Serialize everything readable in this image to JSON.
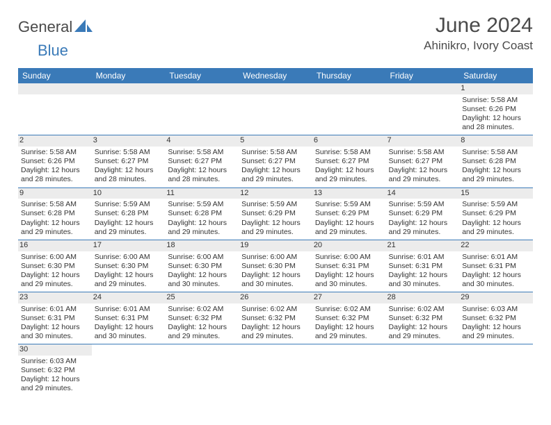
{
  "brand": {
    "part1": "General",
    "part2": "Blue"
  },
  "title": "June 2024",
  "location": "Ahinikro, Ivory Coast",
  "colors": {
    "header_bg": "#3a7ab8",
    "header_text": "#ffffff",
    "daynum_bg": "#ececec",
    "divider": "#3a7ab8",
    "text": "#333333",
    "logo_gray": "#4a4a4a",
    "logo_blue": "#3a7ab8"
  },
  "weekdays": [
    "Sunday",
    "Monday",
    "Tuesday",
    "Wednesday",
    "Thursday",
    "Friday",
    "Saturday"
  ],
  "weeks": [
    [
      null,
      null,
      null,
      null,
      null,
      null,
      {
        "n": "1",
        "sr": "5:58 AM",
        "ss": "6:26 PM",
        "dl": "12 hours and 28 minutes."
      }
    ],
    [
      {
        "n": "2",
        "sr": "5:58 AM",
        "ss": "6:26 PM",
        "dl": "12 hours and 28 minutes."
      },
      {
        "n": "3",
        "sr": "5:58 AM",
        "ss": "6:27 PM",
        "dl": "12 hours and 28 minutes."
      },
      {
        "n": "4",
        "sr": "5:58 AM",
        "ss": "6:27 PM",
        "dl": "12 hours and 28 minutes."
      },
      {
        "n": "5",
        "sr": "5:58 AM",
        "ss": "6:27 PM",
        "dl": "12 hours and 29 minutes."
      },
      {
        "n": "6",
        "sr": "5:58 AM",
        "ss": "6:27 PM",
        "dl": "12 hours and 29 minutes."
      },
      {
        "n": "7",
        "sr": "5:58 AM",
        "ss": "6:27 PM",
        "dl": "12 hours and 29 minutes."
      },
      {
        "n": "8",
        "sr": "5:58 AM",
        "ss": "6:28 PM",
        "dl": "12 hours and 29 minutes."
      }
    ],
    [
      {
        "n": "9",
        "sr": "5:58 AM",
        "ss": "6:28 PM",
        "dl": "12 hours and 29 minutes."
      },
      {
        "n": "10",
        "sr": "5:59 AM",
        "ss": "6:28 PM",
        "dl": "12 hours and 29 minutes."
      },
      {
        "n": "11",
        "sr": "5:59 AM",
        "ss": "6:28 PM",
        "dl": "12 hours and 29 minutes."
      },
      {
        "n": "12",
        "sr": "5:59 AM",
        "ss": "6:29 PM",
        "dl": "12 hours and 29 minutes."
      },
      {
        "n": "13",
        "sr": "5:59 AM",
        "ss": "6:29 PM",
        "dl": "12 hours and 29 minutes."
      },
      {
        "n": "14",
        "sr": "5:59 AM",
        "ss": "6:29 PM",
        "dl": "12 hours and 29 minutes."
      },
      {
        "n": "15",
        "sr": "5:59 AM",
        "ss": "6:29 PM",
        "dl": "12 hours and 29 minutes."
      }
    ],
    [
      {
        "n": "16",
        "sr": "6:00 AM",
        "ss": "6:30 PM",
        "dl": "12 hours and 29 minutes."
      },
      {
        "n": "17",
        "sr": "6:00 AM",
        "ss": "6:30 PM",
        "dl": "12 hours and 29 minutes."
      },
      {
        "n": "18",
        "sr": "6:00 AM",
        "ss": "6:30 PM",
        "dl": "12 hours and 30 minutes."
      },
      {
        "n": "19",
        "sr": "6:00 AM",
        "ss": "6:30 PM",
        "dl": "12 hours and 30 minutes."
      },
      {
        "n": "20",
        "sr": "6:00 AM",
        "ss": "6:31 PM",
        "dl": "12 hours and 30 minutes."
      },
      {
        "n": "21",
        "sr": "6:01 AM",
        "ss": "6:31 PM",
        "dl": "12 hours and 30 minutes."
      },
      {
        "n": "22",
        "sr": "6:01 AM",
        "ss": "6:31 PM",
        "dl": "12 hours and 30 minutes."
      }
    ],
    [
      {
        "n": "23",
        "sr": "6:01 AM",
        "ss": "6:31 PM",
        "dl": "12 hours and 30 minutes."
      },
      {
        "n": "24",
        "sr": "6:01 AM",
        "ss": "6:31 PM",
        "dl": "12 hours and 30 minutes."
      },
      {
        "n": "25",
        "sr": "6:02 AM",
        "ss": "6:32 PM",
        "dl": "12 hours and 29 minutes."
      },
      {
        "n": "26",
        "sr": "6:02 AM",
        "ss": "6:32 PM",
        "dl": "12 hours and 29 minutes."
      },
      {
        "n": "27",
        "sr": "6:02 AM",
        "ss": "6:32 PM",
        "dl": "12 hours and 29 minutes."
      },
      {
        "n": "28",
        "sr": "6:02 AM",
        "ss": "6:32 PM",
        "dl": "12 hours and 29 minutes."
      },
      {
        "n": "29",
        "sr": "6:03 AM",
        "ss": "6:32 PM",
        "dl": "12 hours and 29 minutes."
      }
    ],
    [
      {
        "n": "30",
        "sr": "6:03 AM",
        "ss": "6:32 PM",
        "dl": "12 hours and 29 minutes."
      },
      null,
      null,
      null,
      null,
      null,
      null
    ]
  ],
  "labels": {
    "sunrise": "Sunrise:",
    "sunset": "Sunset:",
    "daylight": "Daylight:"
  }
}
